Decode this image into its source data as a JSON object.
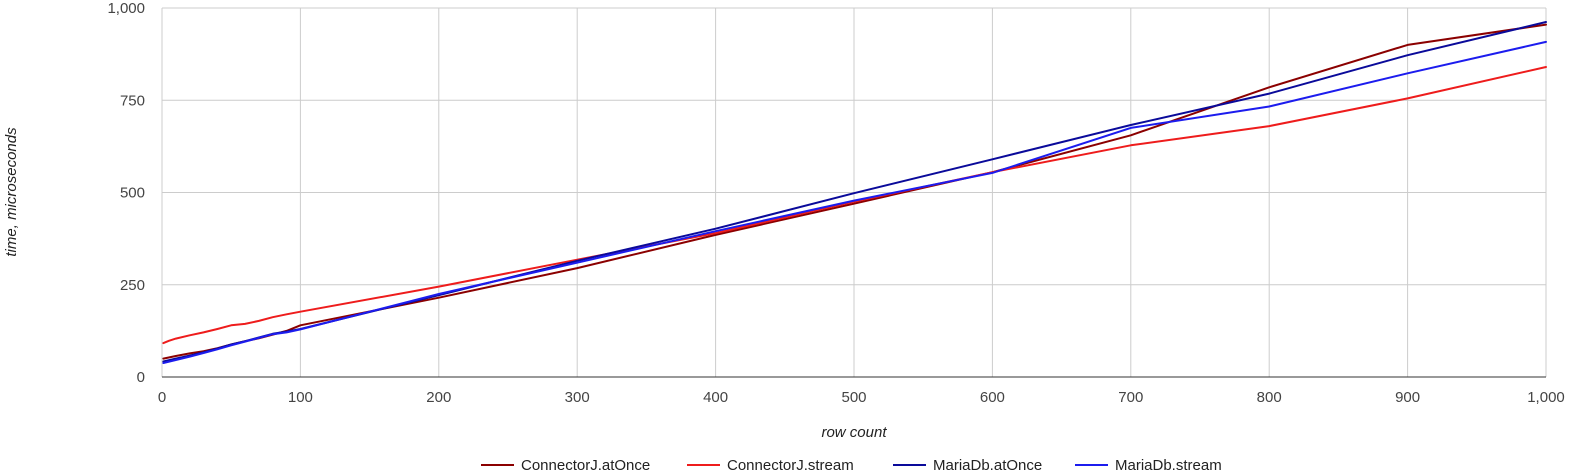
{
  "chart_data": {
    "type": "line",
    "title": "",
    "xlabel": "row count",
    "ylabel": "time, microseconds",
    "xlim": [
      0,
      1000
    ],
    "ylim": [
      0,
      1000
    ],
    "x_ticks": [
      0,
      100,
      200,
      300,
      400,
      500,
      600,
      700,
      800,
      900,
      1000
    ],
    "x_tick_labels": [
      "0",
      "100",
      "200",
      "300",
      "400",
      "500",
      "600",
      "700",
      "800",
      "900",
      "1,000"
    ],
    "y_ticks": [
      0,
      250,
      500,
      750,
      1000
    ],
    "y_tick_labels": [
      "0",
      "250",
      "500",
      "750",
      "1,000"
    ],
    "grid": true,
    "legend_position": "bottom",
    "series": [
      {
        "name": "ConnectorJ.atOnce",
        "color": "#8b0000",
        "points": [
          [
            1,
            50
          ],
          [
            10,
            57
          ],
          [
            20,
            64
          ],
          [
            30,
            70
          ],
          [
            40,
            78
          ],
          [
            50,
            88
          ],
          [
            60,
            97
          ],
          [
            70,
            105
          ],
          [
            80,
            115
          ],
          [
            90,
            125
          ],
          [
            100,
            140
          ],
          [
            200,
            215
          ],
          [
            300,
            295
          ],
          [
            400,
            385
          ],
          [
            500,
            470
          ],
          [
            600,
            555
          ],
          [
            700,
            655
          ],
          [
            800,
            785
          ],
          [
            900,
            900
          ],
          [
            1000,
            955
          ]
        ]
      },
      {
        "name": "ConnectorJ.stream",
        "color": "#ee1c1c",
        "points": [
          [
            1,
            92
          ],
          [
            5,
            98
          ],
          [
            10,
            104
          ],
          [
            20,
            113
          ],
          [
            30,
            121
          ],
          [
            40,
            130
          ],
          [
            50,
            140
          ],
          [
            60,
            144
          ],
          [
            70,
            152
          ],
          [
            80,
            162
          ],
          [
            90,
            170
          ],
          [
            100,
            177
          ],
          [
            200,
            245
          ],
          [
            300,
            318
          ],
          [
            400,
            390
          ],
          [
            500,
            475
          ],
          [
            600,
            555
          ],
          [
            700,
            628
          ],
          [
            800,
            680
          ],
          [
            900,
            755
          ],
          [
            1000,
            840
          ]
        ]
      },
      {
        "name": "MariaDb.atOnce",
        "color": "#0a0a9a",
        "points": [
          [
            1,
            42
          ],
          [
            10,
            50
          ],
          [
            20,
            58
          ],
          [
            30,
            67
          ],
          [
            40,
            77
          ],
          [
            50,
            88
          ],
          [
            60,
            97
          ],
          [
            70,
            107
          ],
          [
            80,
            117
          ],
          [
            90,
            123
          ],
          [
            100,
            130
          ],
          [
            200,
            222
          ],
          [
            300,
            315
          ],
          [
            400,
            402
          ],
          [
            500,
            498
          ],
          [
            600,
            590
          ],
          [
            700,
            683
          ],
          [
            800,
            768
          ],
          [
            900,
            872
          ],
          [
            1000,
            962
          ]
        ]
      },
      {
        "name": "MariaDb.stream",
        "color": "#1c1cee",
        "points": [
          [
            1,
            38
          ],
          [
            10,
            46
          ],
          [
            20,
            55
          ],
          [
            30,
            65
          ],
          [
            40,
            75
          ],
          [
            50,
            86
          ],
          [
            60,
            96
          ],
          [
            70,
            106
          ],
          [
            80,
            116
          ],
          [
            90,
            121
          ],
          [
            100,
            129
          ],
          [
            200,
            225
          ],
          [
            300,
            310
          ],
          [
            400,
            395
          ],
          [
            500,
            478
          ],
          [
            600,
            553
          ],
          [
            700,
            675
          ],
          [
            800,
            733
          ],
          [
            900,
            823
          ],
          [
            1000,
            908
          ]
        ]
      }
    ]
  }
}
